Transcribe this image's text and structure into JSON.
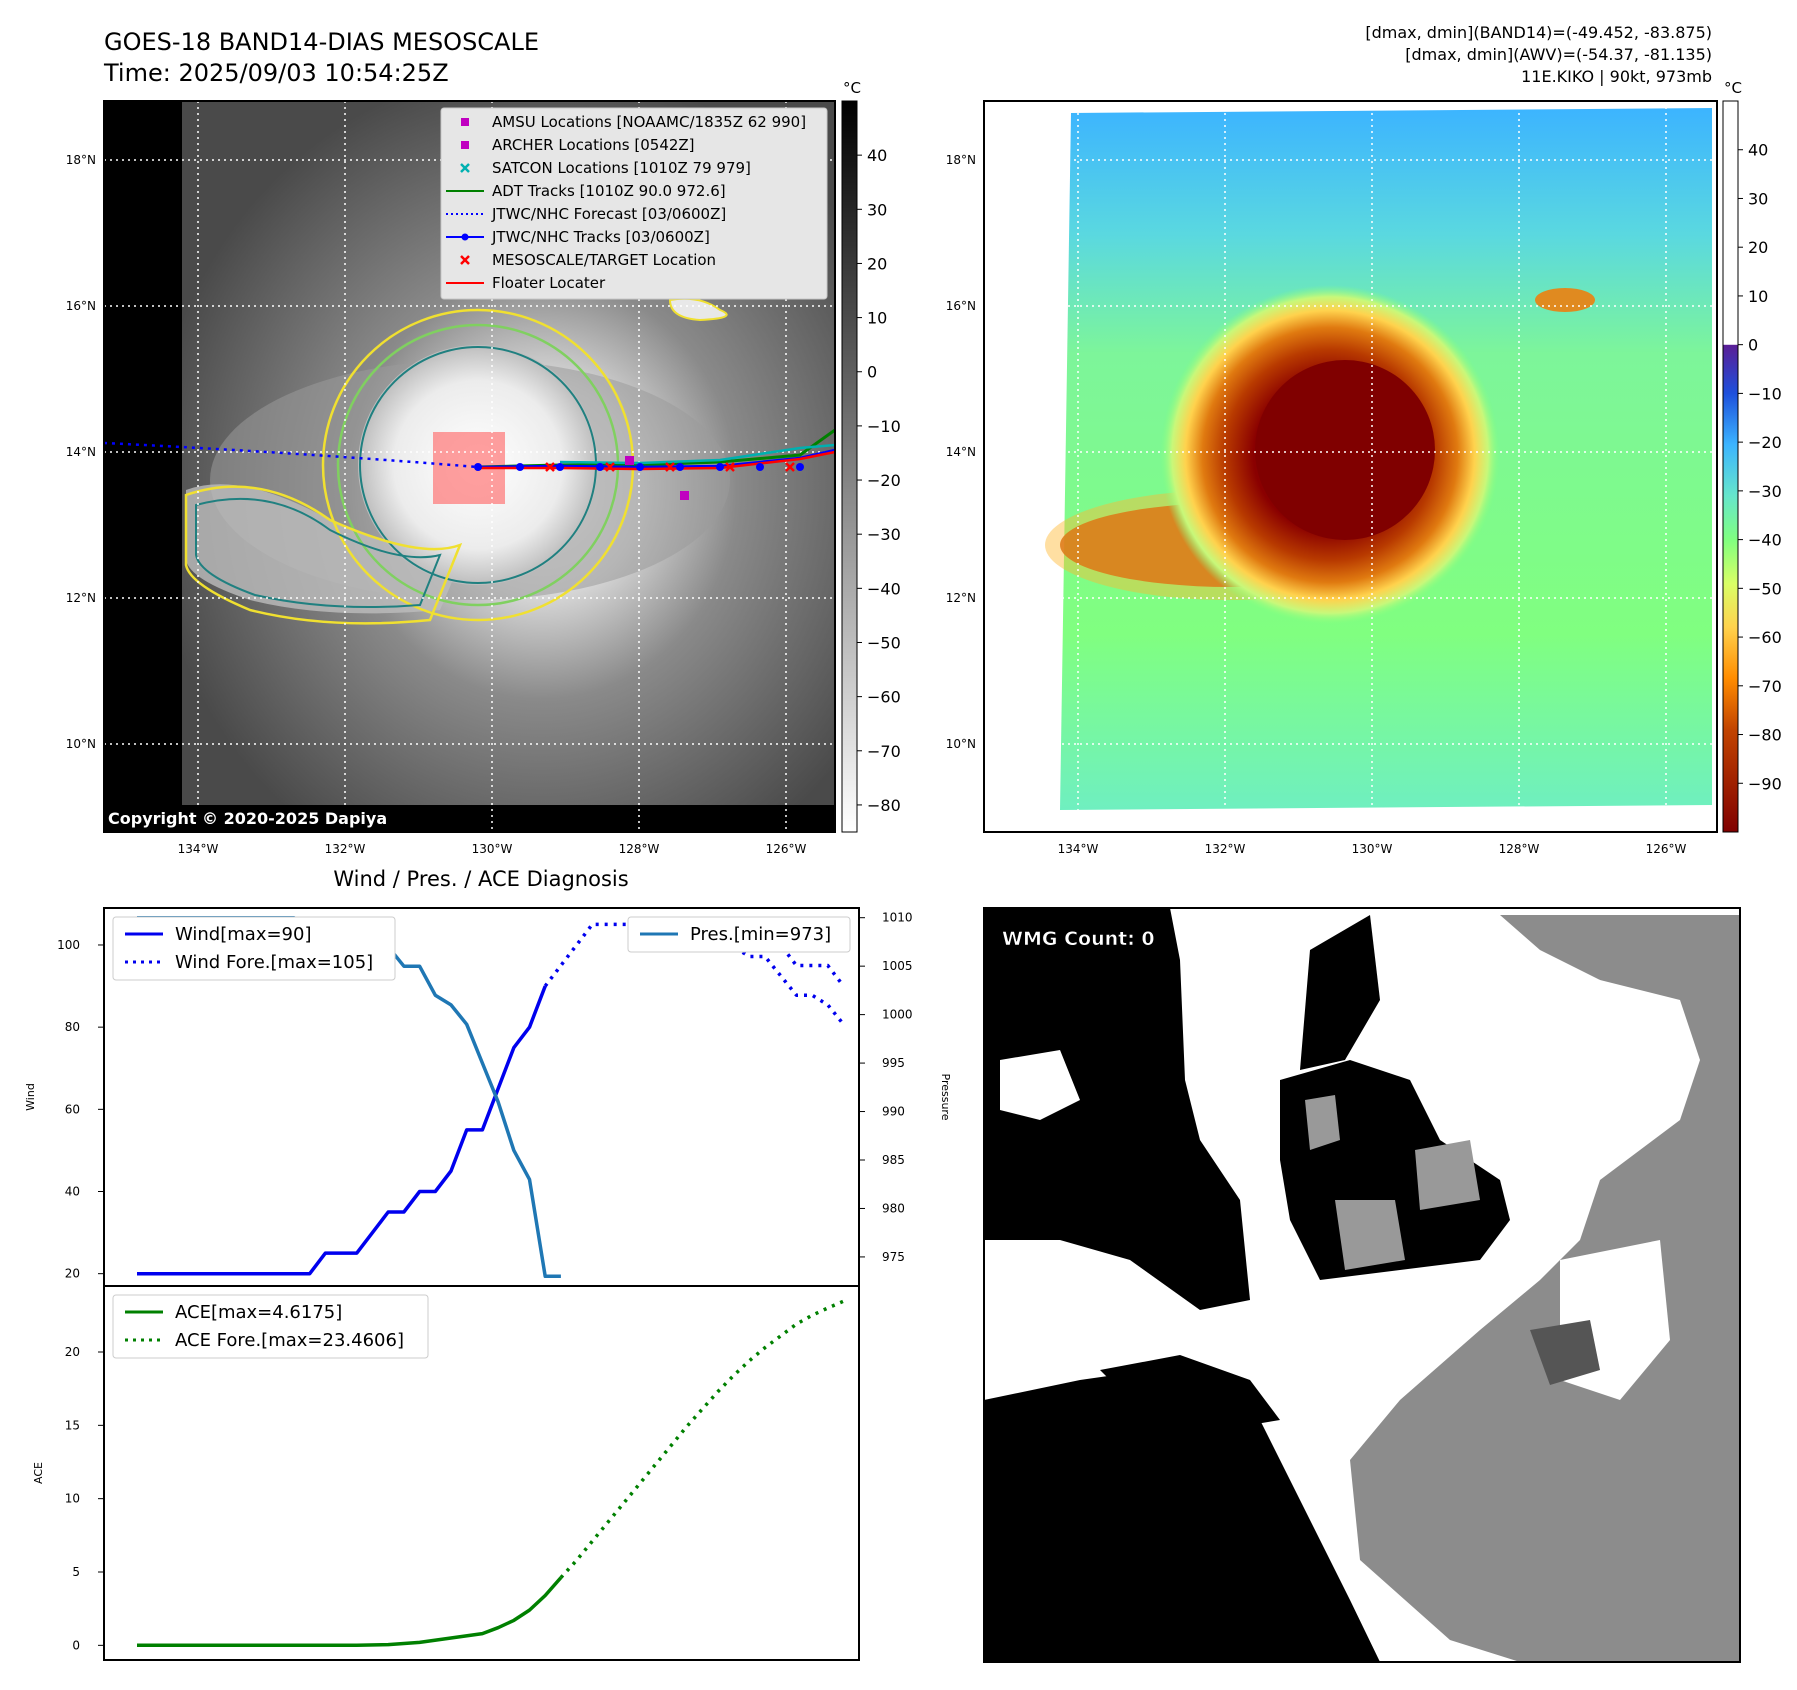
{
  "header": {
    "title": "GOES-18 BAND14-DIAS MESOSCALE",
    "time": "Time: 2025/09/03 10:54:25Z",
    "stats_line1": "[dmax, dmin](BAND14)=(-49.452, -83.875)",
    "stats_line2": "[dmax, dmin](AWV)=(-54.37, -81.135)",
    "storm_info": "11E.KIKO | 90kt, 973mb",
    "copyright": "Copyright © 2020-2025 Dapiya"
  },
  "map_axes": {
    "lat_labels": [
      "18°N",
      "16°N",
      "14°N",
      "12°N",
      "10°N"
    ],
    "lon_labels": [
      "134°W",
      "132°W",
      "130°W",
      "128°W",
      "126°W"
    ],
    "lat_values": [
      18,
      16,
      14,
      12,
      10
    ],
    "lon_values": [
      -134,
      -132,
      -130,
      -128,
      -126
    ]
  },
  "colorbar_gray": {
    "unit": "°C",
    "ticks": [
      "40",
      "30",
      "20",
      "10",
      "0",
      "−10",
      "−20",
      "−30",
      "−40",
      "−50",
      "−60",
      "−70",
      "−80"
    ],
    "tick_values": [
      40,
      30,
      20,
      10,
      0,
      -10,
      -20,
      -30,
      -40,
      -50,
      -60,
      -70,
      -80
    ],
    "range": [
      -85,
      50
    ]
  },
  "colorbar_color": {
    "unit": "°C",
    "ticks": [
      "40",
      "30",
      "20",
      "10",
      "0",
      "−10",
      "−20",
      "−30",
      "−40",
      "−50",
      "−60",
      "−70",
      "−80",
      "−90"
    ],
    "tick_values": [
      40,
      30,
      20,
      10,
      0,
      -10,
      -20,
      -30,
      -40,
      -50,
      -60,
      -70,
      -80,
      -90
    ],
    "range": [
      -100,
      50
    ],
    "colors": [
      "#800000",
      "#c24400",
      "#ff8c00",
      "#ffd24d",
      "#d9ff66",
      "#80ff80",
      "#66e6cc",
      "#3cb4ff",
      "#1e50dc",
      "#5a1e96",
      "#ffffff"
    ]
  },
  "legend": {
    "items": [
      {
        "label": "AMSU Locations [NOAAMC/1835Z 62 990]",
        "kind": "square",
        "color": "#c000c0"
      },
      {
        "label": "ARCHER Locations [0542Z]",
        "kind": "square",
        "color": "#c000c0"
      },
      {
        "label": "SATCON Locations [1010Z 79 979]",
        "kind": "x",
        "color": "#00b0b0"
      },
      {
        "label": "ADT Tracks [1010Z 90.0 972.6]",
        "kind": "line",
        "color": "#008000"
      },
      {
        "label": "JTWC/NHC Forecast [03/0600Z]",
        "kind": "dotted",
        "color": "#0000ff"
      },
      {
        "label": "JTWC/NHC Tracks [03/0600Z]",
        "kind": "line-dot",
        "color": "#0000ff"
      },
      {
        "label": "MESOSCALE/TARGET Location",
        "kind": "x",
        "color": "#ff0000"
      },
      {
        "label": "Floater Locater",
        "kind": "line",
        "color": "#ff0000"
      }
    ]
  },
  "wind_panel": {
    "title": "Wind / Pres. / ACE Diagnosis",
    "ylabel_left": "Wind",
    "ylabel_right": "Pressure",
    "left_ticks": [
      "100",
      "80",
      "60",
      "40",
      "20"
    ],
    "left_tick_values": [
      100,
      80,
      60,
      40,
      20
    ],
    "right_ticks": [
      "1010",
      "1005",
      "1000",
      "995",
      "990",
      "985",
      "980",
      "975"
    ],
    "right_tick_values": [
      1010,
      1005,
      1000,
      995,
      990,
      985,
      980,
      975
    ],
    "legend_wind": "Wind[max=90]",
    "legend_wind_fore": "Wind Fore.[max=105]",
    "legend_pres": "Pres.[min=973]"
  },
  "ace_panel": {
    "ylabel": "ACE",
    "ticks": [
      "20",
      "15",
      "10",
      "5",
      "0"
    ],
    "tick_values": [
      20,
      15,
      10,
      5,
      0
    ],
    "legend_ace": "ACE[max=4.6175]",
    "legend_ace_fore": "ACE Fore.[max=23.4606]"
  },
  "wmg_panel": {
    "label": "WMG Count: 0"
  },
  "chart_data": [
    {
      "type": "line",
      "panel": "wind",
      "x": [
        0,
        1,
        2,
        3,
        4,
        5,
        6,
        7,
        8,
        9,
        10,
        11,
        12,
        13,
        14,
        15,
        16,
        17,
        18,
        19,
        20,
        21,
        22,
        23,
        24,
        25,
        26
      ],
      "series": [
        {
          "name": "Wind[max=90]",
          "values": [
            20,
            20,
            20,
            20,
            20,
            20,
            20,
            20,
            20,
            20,
            20,
            20,
            25,
            25,
            25,
            30,
            35,
            35,
            40,
            40,
            45,
            55,
            55,
            65,
            75,
            80,
            90
          ],
          "color": "#0000ee",
          "style": "solid"
        },
        {
          "name": "Wind Fore.[max=105]",
          "x": [
            26,
            27,
            28,
            29,
            30,
            31,
            32,
            33,
            34,
            35,
            36,
            37,
            38,
            39,
            40,
            41,
            42,
            43,
            44,
            45
          ],
          "values": [
            90,
            95,
            100,
            105,
            105,
            105,
            105,
            105,
            105,
            105,
            105,
            105,
            105,
            100,
            100,
            100,
            95,
            95,
            95,
            90
          ],
          "color": "#0000ee",
          "style": "dotted"
        }
      ],
      "ylim": [
        17,
        109
      ]
    },
    {
      "type": "line",
      "panel": "pressure",
      "series": [
        {
          "name": "Pres.[min=973]",
          "x": [
            0,
            1,
            2,
            3,
            4,
            5,
            6,
            7,
            8,
            9,
            10,
            11,
            12,
            13,
            14,
            15,
            16,
            17,
            18,
            19,
            20,
            21,
            22,
            23,
            24,
            25,
            26,
            27
          ],
          "values": [
            1010,
            1010,
            1010,
            1010,
            1010,
            1010,
            1010,
            1010,
            1010,
            1010,
            1010,
            1009,
            1009,
            1009,
            1009,
            1008,
            1007,
            1005,
            1005,
            1002,
            1001,
            999,
            995,
            991,
            986,
            983,
            973,
            973
          ],
          "color": "#1f77b4",
          "style": "solid"
        },
        {
          "name": "Pres. Fore.",
          "x": [
            36,
            37,
            38,
            39,
            40,
            41,
            42,
            43,
            44,
            45
          ],
          "values": [
            1010,
            1008,
            1007,
            1006,
            1006,
            1004,
            1002,
            1002,
            1001,
            999
          ],
          "color": "#0000ee",
          "style": "dotted"
        }
      ],
      "ylim": [
        972,
        1011
      ]
    },
    {
      "type": "line",
      "panel": "ace",
      "series": [
        {
          "name": "ACE[max=4.6175]",
          "x": [
            0,
            2,
            4,
            6,
            8,
            10,
            12,
            14,
            16,
            18,
            20,
            22,
            23,
            24,
            25,
            26,
            27
          ],
          "values": [
            0,
            0,
            0,
            0,
            0,
            0,
            0,
            0,
            0.05,
            0.2,
            0.5,
            0.8,
            1.2,
            1.7,
            2.4,
            3.4,
            4.6175
          ],
          "color": "#008000",
          "style": "solid"
        },
        {
          "name": "ACE Fore.[max=23.4606]",
          "x": [
            27,
            28,
            29,
            30,
            31,
            32,
            33,
            34,
            35,
            36,
            37,
            38,
            39,
            40,
            41,
            42,
            43,
            44,
            45
          ],
          "values": [
            4.6175,
            5.8,
            7.1,
            8.4,
            9.7,
            11.0,
            12.3,
            13.6,
            14.9,
            16.1,
            17.3,
            18.4,
            19.4,
            20.3,
            21.1,
            21.9,
            22.5,
            23.0,
            23.4606
          ],
          "color": "#008000",
          "style": "dotted"
        }
      ],
      "ylim": [
        -1,
        24.5
      ]
    }
  ]
}
